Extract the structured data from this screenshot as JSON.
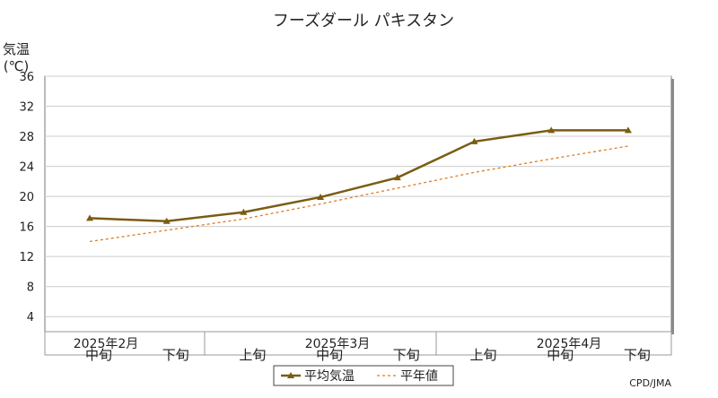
{
  "chart_data": {
    "type": "line",
    "title": "フーズダール パキスタン",
    "ylabel_line1": "気温",
    "ylabel_line2": "(℃)",
    "ylim": [
      2,
      36
    ],
    "yticks": [
      4,
      8,
      12,
      16,
      20,
      24,
      28,
      32,
      36
    ],
    "grid": true,
    "categories": [
      "中旬",
      "下旬",
      "上旬",
      "中旬",
      "下旬",
      "上旬",
      "中旬",
      "下旬"
    ],
    "month_labels": [
      "2025年2月",
      "2025年3月",
      "2025年4月"
    ],
    "series": [
      {
        "name": "平均気温",
        "values": [
          17.1,
          16.7,
          17.9,
          19.9,
          22.5,
          27.3,
          28.8,
          28.8
        ],
        "color": "#7a5c12",
        "style": "solid-marker"
      },
      {
        "name": "平年値",
        "values": [
          14.0,
          15.5,
          17.0,
          19.0,
          21.1,
          23.2,
          25.0,
          26.7
        ],
        "color": "#e07b20",
        "style": "dashed"
      }
    ],
    "legend_position": "bottom",
    "credit": "CPD/JMA"
  }
}
